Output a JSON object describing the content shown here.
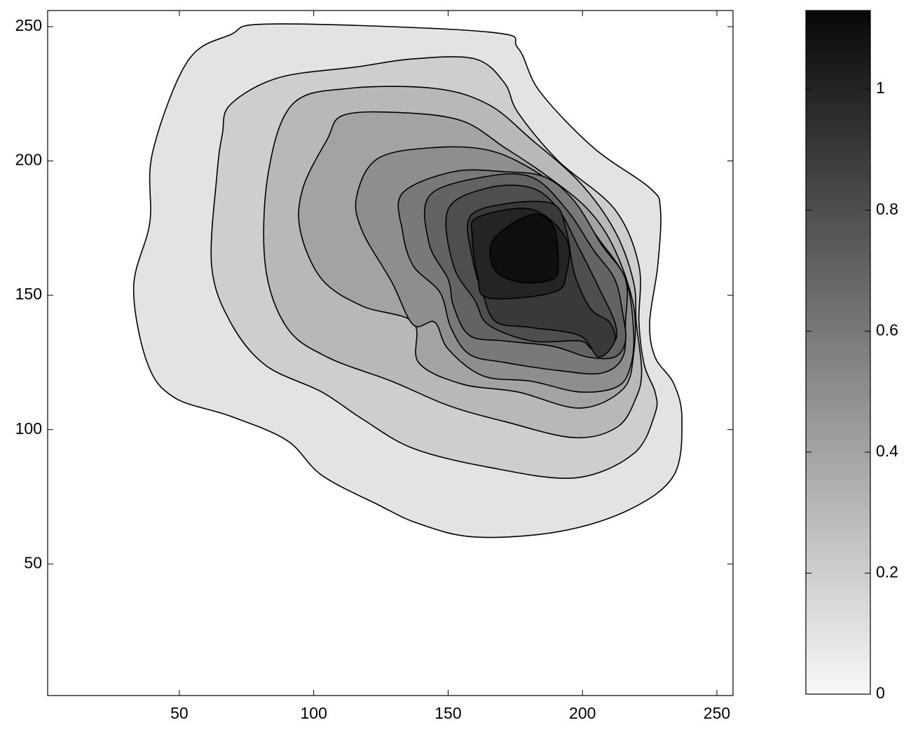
{
  "chart_data": {
    "type": "contour",
    "xlim": [
      1,
      256
    ],
    "ylim": [
      1,
      256
    ],
    "xticks": [
      50,
      100,
      150,
      200,
      250
    ],
    "yticks": [
      50,
      100,
      150,
      200,
      250
    ],
    "clim": [
      0,
      1.13
    ],
    "cticks": [
      0,
      0.2,
      0.4,
      0.6,
      0.8,
      1
    ],
    "colormap": "gray-reversed",
    "line_color": "#000000",
    "colorbar": true,
    "contours": [
      {
        "level": 0.1,
        "x": [
          85,
          165,
          176,
          184,
          204,
          225,
          229,
          228,
          225,
          227,
          234,
          237,
          234,
          217,
          191,
          160,
          139,
          124,
          103,
          90,
          69,
          48,
          38,
          33,
          39,
          40,
          53,
          69
        ],
        "y": [
          251,
          248,
          242,
          226,
          205,
          190,
          182,
          161,
          140,
          127,
          117,
          104,
          83,
          70,
          62,
          60,
          65,
          72,
          83,
          96,
          105,
          112,
          125,
          153,
          177,
          203,
          237,
          247
        ]
      },
      {
        "level": 0.2,
        "x": [
          69,
          87,
          116,
          137,
          160,
          171,
          176,
          191,
          212,
          221,
          221,
          223,
          227,
          227,
          219,
          197,
          165,
          137,
          118,
          103,
          82,
          69,
          62,
          64,
          66
        ],
        "y": [
          221,
          231,
          235,
          238,
          238,
          229,
          218,
          200,
          182,
          161,
          140,
          124,
          114,
          106,
          91,
          82,
          86,
          93,
          104,
          114,
          124,
          140,
          161,
          195,
          210
        ]
      },
      {
        "level": 0.3,
        "x": [
          92,
          113,
          145,
          165,
          181,
          199,
          212,
          219,
          220,
          222,
          220,
          213,
          197,
          171,
          150,
          129,
          105,
          90,
          82,
          83
        ],
        "y": [
          221,
          227,
          227,
          221,
          208,
          192,
          174,
          155,
          140,
          122,
          112,
          101,
          97,
          103,
          109,
          118,
          127,
          138,
          161,
          195
        ]
      },
      {
        "level": 0.4,
        "x": [
          111,
          132,
          155,
          171,
          186,
          202,
          212,
          219,
          219,
          215,
          199,
          176,
          155,
          139,
          137,
          118,
          103,
          95,
          96,
          105
        ],
        "y": [
          217,
          218,
          215,
          205,
          195,
          182,
          167,
          146,
          128,
          115,
          108,
          114,
          117,
          125,
          140,
          146,
          156,
          174,
          190,
          208
        ]
      },
      {
        "level": 0.5,
        "x": [
          124,
          145,
          165,
          181,
          194,
          206,
          216,
          219,
          218,
          213,
          199,
          181,
          163,
          150,
          145,
          137,
          129,
          118,
          116
        ],
        "y": [
          201,
          205,
          204,
          197,
          187,
          171,
          156,
          137,
          124,
          116,
          114,
          118,
          120,
          130,
          140,
          139,
          155,
          174,
          187
        ]
      },
      {
        "level": 0.6,
        "x": [
          133,
          152,
          171,
          186,
          197,
          207,
          216,
          216,
          215,
          207,
          191,
          171,
          158,
          151,
          147,
          137,
          133
        ],
        "y": [
          188,
          196,
          196,
          194,
          185,
          169,
          156,
          140,
          127,
          121,
          122,
          125,
          128,
          138,
          151,
          161,
          174
        ]
      },
      {
        "level": 0.7,
        "x": [
          143,
          163,
          181,
          194,
          204,
          212,
          215,
          216,
          212,
          202,
          189,
          171,
          158,
          152,
          150,
          143
        ],
        "y": [
          187,
          194,
          194,
          182,
          167,
          156,
          143,
          133,
          127,
          127,
          131,
          133,
          135,
          146,
          156,
          169
        ]
      },
      {
        "level": 0.8,
        "x": [
          150,
          165,
          181,
          191,
          199,
          207,
          212,
          212,
          204,
          199,
          181,
          165,
          160,
          152
        ],
        "y": [
          182,
          190,
          190,
          182,
          167,
          151,
          140,
          133,
          130,
          133,
          133,
          139,
          148,
          161
        ]
      },
      {
        "level": 0.9,
        "x": [
          158,
          171,
          189,
          194,
          197,
          203,
          210,
          212,
          206,
          199,
          181,
          168,
          163,
          159
        ],
        "y": [
          179,
          184,
          184,
          174,
          158,
          145,
          140,
          133,
          127,
          135,
          138,
          140,
          150,
          164
        ]
      },
      {
        "level": 1.0,
        "x": [
          161,
          181,
          194,
          194,
          189,
          165,
          161,
          159
        ],
        "y": [
          179,
          182,
          171,
          158,
          151,
          149,
          157,
          172
        ]
      },
      {
        "level": 1.1,
        "x": [
          167,
          181,
          189,
          191,
          189,
          176,
          167
        ],
        "y": [
          171,
          180,
          176,
          163,
          156,
          155,
          160
        ]
      }
    ]
  }
}
